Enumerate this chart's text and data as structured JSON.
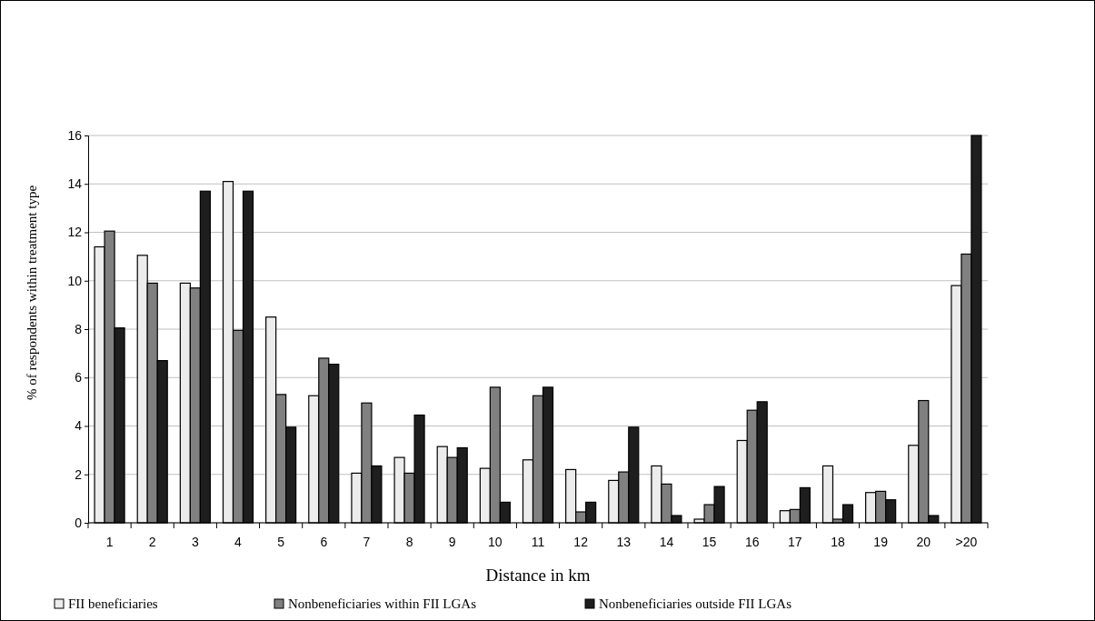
{
  "chart_data": {
    "type": "bar",
    "xlabel": "Distance in km",
    "ylabel": "% of respondents within treatment type",
    "categories": [
      "1",
      "2",
      "3",
      "4",
      "5",
      "6",
      "7",
      "8",
      "9",
      "10",
      "11",
      "12",
      "13",
      "14",
      "15",
      "16",
      "17",
      "18",
      "19",
      "20",
      ">20"
    ],
    "series": [
      {
        "name": "FII beneficiaries",
        "color": "#ececec",
        "values": [
          11.4,
          11.05,
          9.9,
          14.1,
          8.5,
          5.25,
          2.05,
          2.7,
          3.15,
          2.25,
          2.6,
          2.2,
          1.75,
          2.35,
          0.15,
          3.4,
          0.5,
          2.35,
          1.25,
          3.2,
          9.8
        ]
      },
      {
        "name": "Nonbeneficiaries within FII LGAs",
        "color": "#808080",
        "values": [
          12.05,
          9.9,
          9.7,
          7.95,
          5.3,
          6.8,
          4.95,
          2.05,
          2.7,
          5.6,
          5.25,
          0.45,
          2.1,
          1.6,
          0.75,
          4.65,
          0.55,
          0.15,
          1.3,
          5.05,
          11.1
        ]
      },
      {
        "name": "Nonbeneficiaries outside FII LGAs",
        "color": "#1e1e1e",
        "values": [
          8.05,
          6.7,
          13.7,
          13.7,
          3.95,
          6.55,
          2.35,
          4.45,
          3.1,
          0.85,
          5.6,
          0.85,
          3.95,
          0.3,
          1.5,
          5.0,
          1.45,
          0.75,
          0.95,
          0.3,
          16
        ]
      }
    ],
    "ylim": [
      0,
      16
    ],
    "yticks": [
      0,
      2,
      4,
      6,
      8,
      10,
      12,
      14,
      16
    ],
    "grid": "y",
    "legend": "bottom"
  }
}
